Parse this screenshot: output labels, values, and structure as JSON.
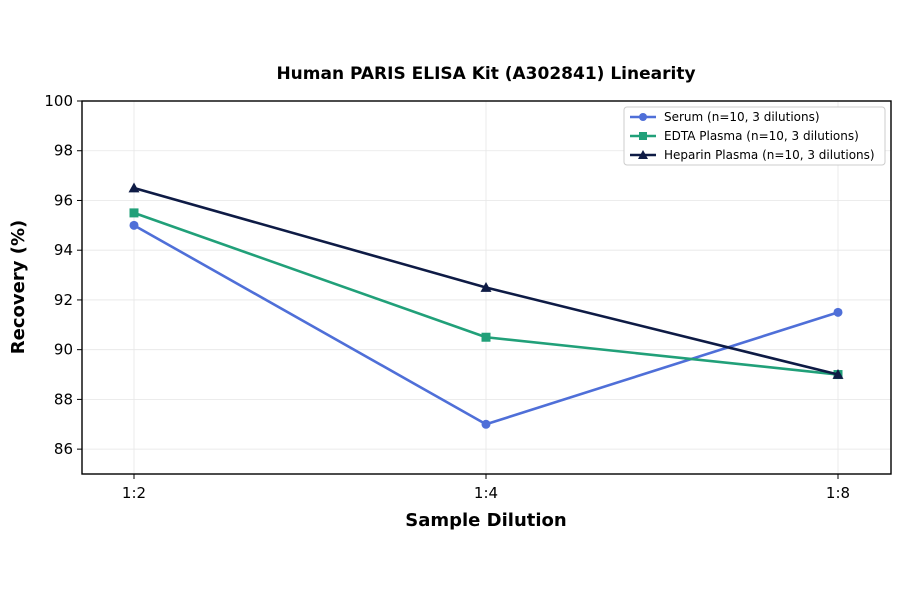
{
  "chart_data": {
    "type": "line",
    "title": "Human PARIS ELISA Kit (A302841) Linearity",
    "xlabel": "Sample Dilution",
    "ylabel": "Recovery (%)",
    "categories": [
      "1:2",
      "1:4",
      "1:8"
    ],
    "ylim": [
      85,
      100
    ],
    "yticks": [
      86,
      88,
      90,
      92,
      94,
      96,
      98,
      100
    ],
    "grid": true,
    "legend_position": "top-right",
    "series": [
      {
        "name": "Serum (n=10, 3 dilutions)",
        "values": [
          95.0,
          87.0,
          91.5
        ],
        "color": "#4f6fd8",
        "marker": "circle"
      },
      {
        "name": "EDTA Plasma (n=10, 3 dilutions)",
        "values": [
          95.5,
          90.5,
          89.0
        ],
        "color": "#21a079",
        "marker": "square"
      },
      {
        "name": "Heparin Plasma (n=10, 3 dilutions)",
        "values": [
          96.5,
          92.5,
          89.0
        ],
        "color": "#0e1b45",
        "marker": "triangle"
      }
    ]
  }
}
